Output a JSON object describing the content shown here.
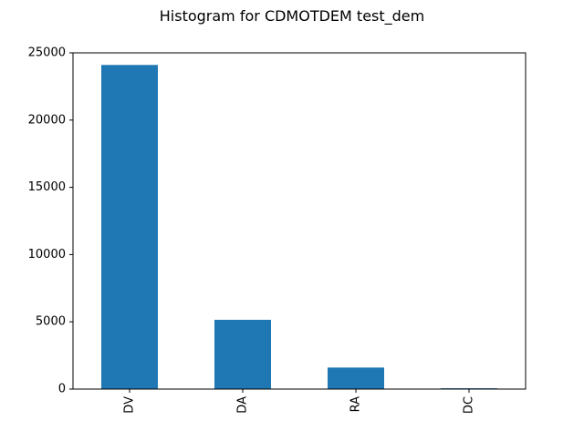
{
  "chart_data": {
    "type": "bar",
    "title": "Histogram for CDMOTDEM test_dem",
    "xlabel": "",
    "ylabel": "",
    "categories": [
      "DV",
      "DA",
      "RA",
      "DC"
    ],
    "values": [
      24100,
      5150,
      1600,
      60
    ],
    "ylim": [
      0,
      25000
    ],
    "yticks": [
      0,
      5000,
      10000,
      15000,
      20000,
      25000
    ],
    "grid": false,
    "bar_color": "#1f77b4"
  }
}
